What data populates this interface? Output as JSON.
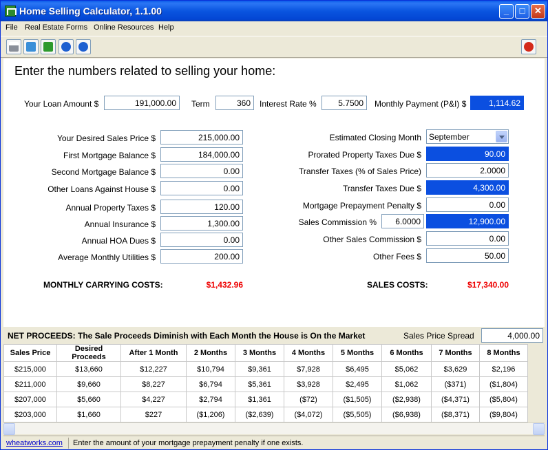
{
  "window": {
    "title": "Home Selling Calculator, 1.1.00"
  },
  "menu": [
    "File",
    "Real Estate Forms",
    "Online Resources",
    "Help"
  ],
  "toolbar": {
    "icons": [
      "printer-icon",
      "refresh-icon",
      "check-icon",
      "info-icon",
      "help-icon",
      "close-icon"
    ]
  },
  "heading": "Enter the numbers related to selling your home:",
  "loan": {
    "amount_label": "Your Loan Amount $",
    "amount": "191,000.00",
    "term_label": "Term",
    "term": "360",
    "rate_label": "Interest Rate %",
    "rate": "5.7500",
    "payment_label": "Monthly Payment (P&I) $",
    "payment": "1,114.62"
  },
  "left": [
    {
      "label": "Your Desired Sales Price $",
      "value": "215,000.00"
    },
    {
      "label": "First Mortgage Balance $",
      "value": "184,000.00"
    },
    {
      "label": "Second Mortgage Balance $",
      "value": "0.00"
    },
    {
      "label": "Other Loans Against House $",
      "value": "0.00"
    },
    {
      "label": "Annual Property Taxes $",
      "value": "120.00"
    },
    {
      "label": "Annual Insurance $",
      "value": "1,300.00"
    },
    {
      "label": "Annual HOA Dues $",
      "value": "0.00"
    },
    {
      "label": "Average Monthly Utilities $",
      "value": "200.00"
    }
  ],
  "right": {
    "closing_month_label": "Estimated Closing Month",
    "closing_month": "September",
    "prorated_label": "Prorated Property Taxes Due $",
    "prorated": "90.00",
    "transfer_pct_label": "Transfer Taxes (% of Sales Price)",
    "transfer_pct": "2.0000",
    "transfer_due_label": "Transfer Taxes Due $",
    "transfer_due": "4,300.00",
    "prepay_label": "Mortgage Prepayment Penalty $",
    "prepay": "0.00",
    "commission_label": "Sales Commission %",
    "commission_pct": "6.0000",
    "commission": "12,900.00",
    "other_commission_label": "Other Sales Commission $",
    "other_commission": "0.00",
    "other_fees_label": "Other Fees $",
    "other_fees": "50.00"
  },
  "totals": {
    "carrying_label": "MONTHLY CARRYING COSTS:",
    "carrying": "$1,432.96",
    "sales_label": "SALES COSTS:",
    "sales": "$17,340.00"
  },
  "net": {
    "title": "NET PROCEEDS:  The Sale Proceeds Diminish with Each Month the House is On the Market",
    "spread_label": "Sales Price Spread",
    "spread": "4,000.00"
  },
  "table": {
    "headers": [
      "Sales Price",
      "Desired Proceeds",
      "After 1 Month",
      "2 Months",
      "3 Months",
      "4 Months",
      "5 Months",
      "6 Months",
      "7 Months",
      "8 Months"
    ],
    "rows": [
      [
        "$215,000",
        "$13,660",
        "$12,227",
        "$10,794",
        "$9,361",
        "$7,928",
        "$6,495",
        "$5,062",
        "$3,629",
        "$2,196"
      ],
      [
        "$211,000",
        "$9,660",
        "$8,227",
        "$6,794",
        "$5,361",
        "$3,928",
        "$2,495",
        "$1,062",
        "($371)",
        "($1,804)"
      ],
      [
        "$207,000",
        "$5,660",
        "$4,227",
        "$2,794",
        "$1,361",
        "($72)",
        "($1,505)",
        "($2,938)",
        "($4,371)",
        "($5,804)"
      ],
      [
        "$203,000",
        "$1,660",
        "$227",
        "($1,206)",
        "($2,639)",
        "($4,072)",
        "($5,505)",
        "($6,938)",
        "($8,371)",
        "($9,804)"
      ]
    ]
  },
  "status": {
    "link": "wheatworks.com",
    "message": "Enter the amount of your mortgage prepayment penalty if one exists."
  }
}
